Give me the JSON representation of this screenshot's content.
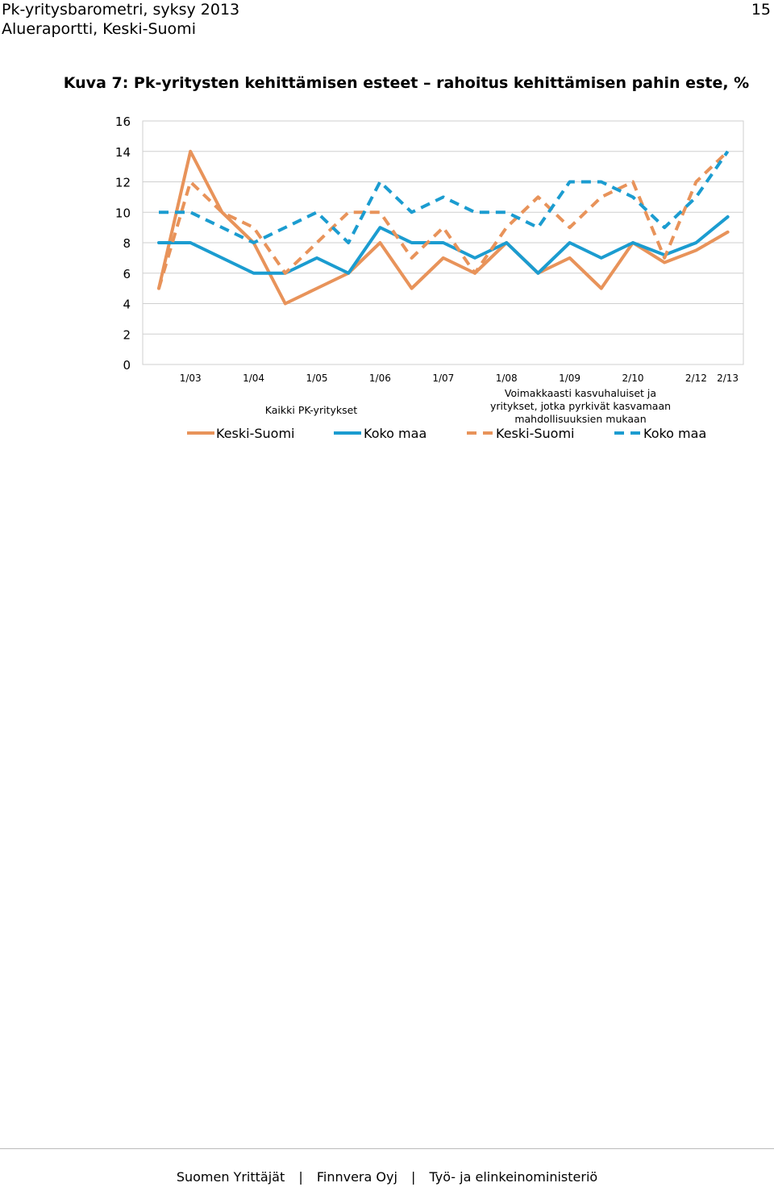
{
  "header": {
    "line1": "Pk-yritysbarometri, syksy 2013",
    "line2": "Alueraportti, Keski-Suomi",
    "page_number": "15"
  },
  "figure_title": "Kuva 7: Pk-yritysten kehittämisen esteet – rahoitus kehittämisen pahin este, %",
  "chart_data": {
    "type": "line",
    "title": "",
    "xlabel": "",
    "ylabel": "",
    "ylim": [
      0,
      16
    ],
    "yticks": [
      0,
      2,
      4,
      6,
      8,
      10,
      12,
      14,
      16
    ],
    "grid": true,
    "x": [
      "",
      "1/03",
      "",
      "1/04",
      "",
      "1/05",
      "",
      "1/06",
      "",
      "1/07",
      "",
      "1/08",
      "",
      "1/09",
      "",
      "2/10",
      "",
      "2/12",
      "2/13"
    ],
    "legend": {
      "placement": "bottom",
      "group_labels": [
        "Kaikki PK-yritykset",
        "Voimakkaasti kasvuhaluiset ja yritykset, jotka pyrkivät kasvamaan mahdollisuuksien mukaan"
      ]
    },
    "series": [
      {
        "name": "Keski-Suomi",
        "group": 0,
        "style": "solid",
        "color": "#E8935A",
        "values": [
          5,
          14,
          10,
          8,
          4,
          5,
          6,
          8,
          5,
          7,
          6,
          8,
          6,
          7,
          5,
          8,
          6.7,
          7.5,
          8.7
        ]
      },
      {
        "name": "Koko maa",
        "group": 0,
        "style": "solid",
        "color": "#1B9CD0",
        "values": [
          8,
          8,
          7,
          6,
          6,
          7,
          6,
          9,
          8,
          8,
          7,
          8,
          6,
          8,
          7,
          8,
          7.2,
          8,
          9.7
        ]
      },
      {
        "name": "Keski-Suomi",
        "group": 1,
        "style": "dashed",
        "color": "#E8935A",
        "values": [
          5,
          12,
          10,
          9,
          6,
          8,
          10,
          10,
          7,
          9,
          6,
          9,
          11,
          9,
          11,
          12,
          7,
          12,
          14
        ]
      },
      {
        "name": "Koko maa",
        "group": 1,
        "style": "dashed",
        "color": "#1B9CD0",
        "values": [
          10,
          10,
          9,
          8,
          9,
          10,
          8,
          12,
          10,
          11,
          10,
          10,
          9,
          12,
          12,
          11,
          9,
          11,
          14
        ]
      }
    ]
  },
  "footer": {
    "items": [
      "Suomen Yrittäjät",
      "Finnvera Oyj",
      "Työ- ja elinkeinoministeriö"
    ],
    "separator": "|"
  }
}
